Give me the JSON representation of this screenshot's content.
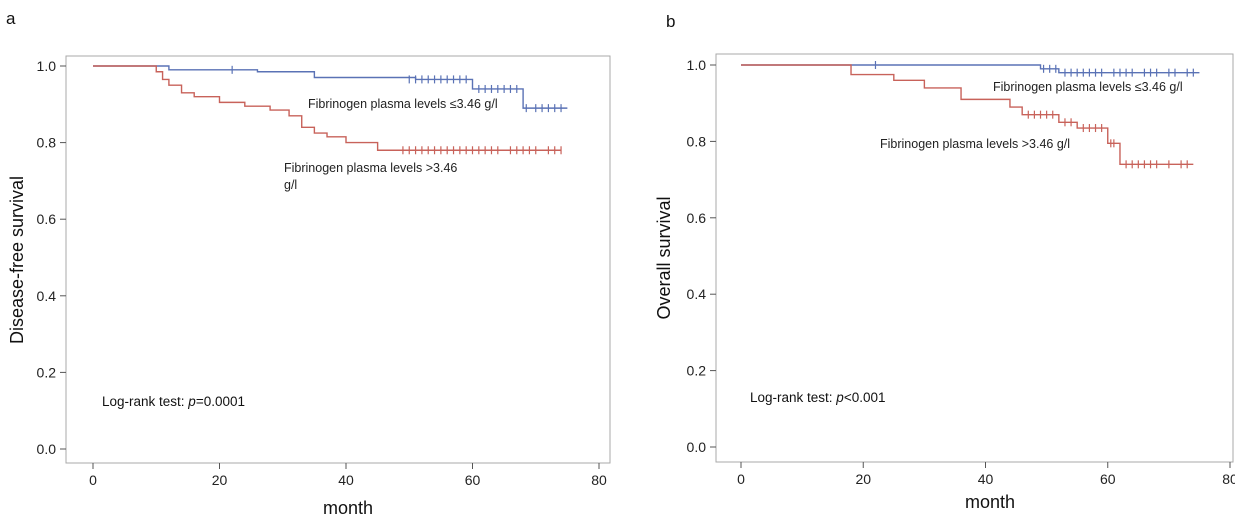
{
  "panels": [
    {
      "letter": "a",
      "ylabel": "Disease-free survival",
      "xlabel": "month",
      "annotation": {
        "prefix": "Log-rank test: ",
        "pvar": "p",
        "suffix": "=0.0001"
      },
      "series_labels": [
        {
          "lines": [
            "Fibrinogen plasma levels ≤3.46 g/l"
          ]
        },
        {
          "lines": [
            "Fibrinogen plasma levels >3.46",
            "g/l"
          ]
        }
      ],
      "x_ticks": [
        "0",
        "20",
        "40",
        "60",
        "80"
      ],
      "y_ticks": [
        "0.0",
        "0.2",
        "0.4",
        "0.6",
        "0.8",
        "1.0"
      ]
    },
    {
      "letter": "b",
      "ylabel": "Overall survival",
      "xlabel": "month",
      "annotation": {
        "prefix": "Log-rank test: ",
        "pvar": "p",
        "suffix": "<0.001"
      },
      "series_labels": [
        {
          "lines": [
            "Fibrinogen plasma levels ≤3.46 g/l"
          ]
        },
        {
          "lines": [
            "Fibrinogen plasma levels >3.46 g/l"
          ]
        }
      ],
      "x_ticks": [
        "0",
        "20",
        "40",
        "60",
        "80"
      ],
      "y_ticks": [
        "0.0",
        "0.2",
        "0.4",
        "0.6",
        "0.8",
        "1.0"
      ]
    }
  ],
  "chart_data": [
    {
      "type": "line",
      "subtype": "kaplan-meier step",
      "xlabel": "month",
      "ylabel": "Disease-free survival",
      "xlim": [
        0,
        80
      ],
      "ylim": [
        0,
        1.0
      ],
      "grid": false,
      "series": [
        {
          "name": "Fibrinogen plasma levels ≤3.46 g/l",
          "color": "#5a72b5",
          "steps": [
            [
              0,
              1.0
            ],
            [
              12,
              0.99
            ],
            [
              26,
              0.985
            ],
            [
              35,
              0.97
            ],
            [
              51,
              0.965
            ],
            [
              60,
              0.94
            ],
            [
              68,
              0.89
            ]
          ],
          "end": 75,
          "censored": [
            [
              22,
              0.99
            ],
            [
              50,
              0.965
            ],
            [
              51,
              0.965
            ],
            [
              52,
              0.965
            ],
            [
              53,
              0.965
            ],
            [
              54,
              0.965
            ],
            [
              55,
              0.965
            ],
            [
              56,
              0.965
            ],
            [
              57,
              0.965
            ],
            [
              58,
              0.965
            ],
            [
              59,
              0.965
            ],
            [
              61,
              0.94
            ],
            [
              62,
              0.94
            ],
            [
              63,
              0.94
            ],
            [
              64,
              0.94
            ],
            [
              65,
              0.94
            ],
            [
              66,
              0.94
            ],
            [
              67,
              0.94
            ],
            [
              68.5,
              0.89
            ],
            [
              70,
              0.89
            ],
            [
              71,
              0.89
            ],
            [
              72,
              0.89
            ],
            [
              73,
              0.89
            ],
            [
              74,
              0.89
            ]
          ]
        },
        {
          "name": "Fibrinogen plasma levels >3.46 g/l",
          "color": "#c8625a",
          "steps": [
            [
              0,
              1.0
            ],
            [
              10,
              0.985
            ],
            [
              11,
              0.965
            ],
            [
              12,
              0.95
            ],
            [
              14,
              0.93
            ],
            [
              16,
              0.92
            ],
            [
              20,
              0.905
            ],
            [
              24,
              0.895
            ],
            [
              28,
              0.885
            ],
            [
              31,
              0.87
            ],
            [
              33,
              0.84
            ],
            [
              35,
              0.825
            ],
            [
              37,
              0.815
            ],
            [
              40,
              0.8
            ],
            [
              45,
              0.78
            ]
          ],
          "end": 74,
          "censored": [
            [
              49,
              0.78
            ],
            [
              50,
              0.78
            ],
            [
              51,
              0.78
            ],
            [
              52,
              0.78
            ],
            [
              53,
              0.78
            ],
            [
              54,
              0.78
            ],
            [
              55,
              0.78
            ],
            [
              56,
              0.78
            ],
            [
              57,
              0.78
            ],
            [
              58,
              0.78
            ],
            [
              59,
              0.78
            ],
            [
              60,
              0.78
            ],
            [
              61,
              0.78
            ],
            [
              62,
              0.78
            ],
            [
              63,
              0.78
            ],
            [
              64,
              0.78
            ],
            [
              66,
              0.78
            ],
            [
              67,
              0.78
            ],
            [
              68,
              0.78
            ],
            [
              69,
              0.78
            ],
            [
              70,
              0.78
            ],
            [
              72,
              0.78
            ],
            [
              73,
              0.78
            ],
            [
              74,
              0.78
            ]
          ]
        }
      ]
    },
    {
      "type": "line",
      "subtype": "kaplan-meier step",
      "xlabel": "month",
      "ylabel": "Overall survival",
      "xlim": [
        0,
        80
      ],
      "ylim": [
        0,
        1.0
      ],
      "grid": false,
      "series": [
        {
          "name": "Fibrinogen plasma levels ≤3.46 g/l",
          "color": "#5a72b5",
          "steps": [
            [
              0,
              1.0
            ],
            [
              49,
              0.99
            ],
            [
              52,
              0.98
            ]
          ],
          "end": 75,
          "censored": [
            [
              22,
              1.0
            ],
            [
              49.5,
              0.99
            ],
            [
              50.5,
              0.99
            ],
            [
              51.5,
              0.99
            ],
            [
              53,
              0.98
            ],
            [
              54,
              0.98
            ],
            [
              55,
              0.98
            ],
            [
              56,
              0.98
            ],
            [
              57,
              0.98
            ],
            [
              58,
              0.98
            ],
            [
              59,
              0.98
            ],
            [
              61,
              0.98
            ],
            [
              62,
              0.98
            ],
            [
              63,
              0.98
            ],
            [
              64,
              0.98
            ],
            [
              66,
              0.98
            ],
            [
              67,
              0.98
            ],
            [
              68,
              0.98
            ],
            [
              70,
              0.98
            ],
            [
              71,
              0.98
            ],
            [
              73,
              0.98
            ],
            [
              74,
              0.98
            ]
          ]
        },
        {
          "name": "Fibrinogen plasma levels >3.46 g/l",
          "color": "#c8625a",
          "steps": [
            [
              0,
              1.0
            ],
            [
              18,
              0.975
            ],
            [
              25,
              0.96
            ],
            [
              30,
              0.94
            ],
            [
              36,
              0.91
            ],
            [
              44,
              0.89
            ],
            [
              46,
              0.87
            ],
            [
              52,
              0.85
            ],
            [
              55,
              0.835
            ],
            [
              60,
              0.795
            ],
            [
              62,
              0.74
            ]
          ],
          "end": 74,
          "censored": [
            [
              47,
              0.87
            ],
            [
              48,
              0.87
            ],
            [
              49,
              0.87
            ],
            [
              50,
              0.87
            ],
            [
              51,
              0.87
            ],
            [
              53,
              0.85
            ],
            [
              54,
              0.85
            ],
            [
              56,
              0.835
            ],
            [
              57,
              0.835
            ],
            [
              58,
              0.835
            ],
            [
              59,
              0.835
            ],
            [
              60.5,
              0.795
            ],
            [
              61,
              0.795
            ],
            [
              63,
              0.74
            ],
            [
              64,
              0.74
            ],
            [
              65,
              0.74
            ],
            [
              66,
              0.74
            ],
            [
              67,
              0.74
            ],
            [
              68,
              0.74
            ],
            [
              70,
              0.74
            ],
            [
              72,
              0.74
            ],
            [
              73,
              0.74
            ]
          ]
        }
      ]
    }
  ]
}
